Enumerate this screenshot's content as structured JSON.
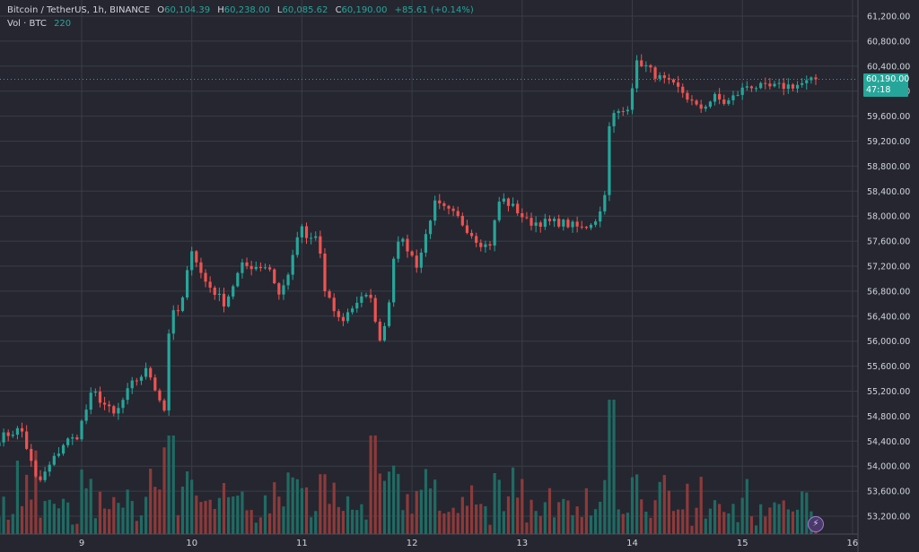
{
  "legend": {
    "symbol": "Bitcoin / TetherUS, 1h, BINANCE",
    "o_label": "O",
    "o_value": "60,104.39",
    "h_label": "H",
    "h_value": "60,238.00",
    "l_label": "L",
    "l_value": "60,085.62",
    "c_label": "C",
    "c_value": "60,190.00",
    "change": "+85.61 (+0.14%)",
    "vol_label": "Vol · BTC",
    "vol_value": "220"
  },
  "price_tag": {
    "price": "60,190.00",
    "countdown": "47:18"
  },
  "colors": {
    "up": "#26a69a",
    "down": "#ef5350",
    "background": "#252630",
    "grid": "#3a3c46",
    "text": "#d1d4dc",
    "vol_up": "#1f6b63",
    "vol_down": "#8d3a3a"
  },
  "icons": {
    "replay": "lightning-icon"
  },
  "chart_data": {
    "type": "candlestick",
    "title": "Bitcoin / TetherUS, 1h, BINANCE",
    "y_ticks": [
      "61,200.00",
      "60,800.00",
      "60,400.00",
      "60,000.00",
      "59,600.00",
      "59,200.00",
      "58,800.00",
      "58,400.00",
      "58,000.00",
      "57,600.00",
      "57,200.00",
      "56,800.00",
      "56,400.00",
      "56,000.00",
      "55,600.00",
      "55,200.00",
      "54,800.00",
      "54,400.00",
      "54,000.00",
      "53,600.00",
      "53,200.00"
    ],
    "x_ticks": [
      "9",
      "10",
      "11",
      "12",
      "13",
      "14",
      "15",
      "16"
    ],
    "ylim": [
      53000,
      61400
    ],
    "last_price": 60190,
    "grid": true,
    "anchors": [
      [
        8.25,
        54450
      ],
      [
        8.45,
        54600
      ],
      [
        8.6,
        53700
      ],
      [
        8.85,
        54400
      ],
      [
        8.95,
        54450
      ],
      [
        9.1,
        55200
      ],
      [
        9.3,
        54800
      ],
      [
        9.45,
        55300
      ],
      [
        9.6,
        55550
      ],
      [
        9.75,
        54900
      ],
      [
        9.8,
        56400
      ],
      [
        9.9,
        56500
      ],
      [
        10.0,
        57500
      ],
      [
        10.1,
        57000
      ],
      [
        10.3,
        56600
      ],
      [
        10.45,
        57200
      ],
      [
        10.7,
        57200
      ],
      [
        10.8,
        56700
      ],
      [
        10.95,
        57500
      ],
      [
        10.97,
        57900
      ],
      [
        11.05,
        57600
      ],
      [
        11.15,
        57700
      ],
      [
        11.2,
        56800
      ],
      [
        11.35,
        56300
      ],
      [
        11.55,
        56750
      ],
      [
        11.65,
        56600
      ],
      [
        11.7,
        55900
      ],
      [
        11.8,
        56700
      ],
      [
        11.85,
        57700
      ],
      [
        11.95,
        57500
      ],
      [
        12.05,
        57200
      ],
      [
        12.2,
        58200
      ],
      [
        12.4,
        58000
      ],
      [
        12.6,
        57600
      ],
      [
        12.7,
        57500
      ],
      [
        12.8,
        58300
      ],
      [
        12.95,
        58100
      ],
      [
        13.05,
        57900
      ],
      [
        13.35,
        57900
      ],
      [
        13.55,
        57800
      ],
      [
        13.7,
        58000
      ],
      [
        13.75,
        58400
      ],
      [
        13.8,
        59600
      ],
      [
        13.95,
        59700
      ],
      [
        14.05,
        60500
      ],
      [
        14.25,
        60200
      ],
      [
        14.45,
        60000
      ],
      [
        14.6,
        59700
      ],
      [
        14.75,
        59900
      ],
      [
        14.85,
        59800
      ],
      [
        15.05,
        60100
      ],
      [
        15.2,
        60050
      ],
      [
        15.5,
        60100
      ],
      [
        15.7,
        60190
      ]
    ],
    "volume_note": "hourly volume histogram, colored by candle direction"
  }
}
